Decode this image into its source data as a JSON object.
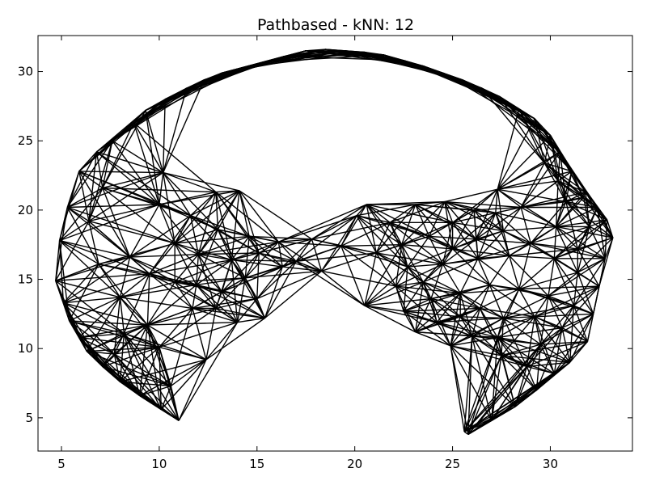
{
  "chart_data": {
    "type": "network",
    "title": "Pathbased - kNN: 12",
    "xlabel": "",
    "ylabel": "",
    "xlim": [
      3.8,
      34.2
    ],
    "ylim": [
      2.6,
      32.6
    ],
    "xticks": [
      "5",
      "10",
      "15",
      "20",
      "25",
      "30"
    ],
    "yticks": [
      "5",
      "10",
      "15",
      "20",
      "25",
      "30"
    ],
    "grid": false,
    "edge_color": "#000000",
    "nodes": [
      {
        "x": 4.7,
        "y": 14.9
      },
      {
        "x": 4.9,
        "y": 17.8
      },
      {
        "x": 5.3,
        "y": 20.2
      },
      {
        "x": 5.9,
        "y": 22.8
      },
      {
        "x": 6.8,
        "y": 24.2
      },
      {
        "x": 7.6,
        "y": 25.0
      },
      {
        "x": 8.7,
        "y": 26.3
      },
      {
        "x": 9.3,
        "y": 27.2
      },
      {
        "x": 10.3,
        "y": 28.0
      },
      {
        "x": 11.4,
        "y": 28.8
      },
      {
        "x": 12.3,
        "y": 29.4
      },
      {
        "x": 13.2,
        "y": 29.9
      },
      {
        "x": 14.3,
        "y": 30.3
      },
      {
        "x": 15.4,
        "y": 30.7
      },
      {
        "x": 16.4,
        "y": 31.1
      },
      {
        "x": 17.5,
        "y": 31.5
      },
      {
        "x": 18.5,
        "y": 31.6
      },
      {
        "x": 19.5,
        "y": 31.5
      },
      {
        "x": 20.5,
        "y": 31.4
      },
      {
        "x": 21.5,
        "y": 31.2
      },
      {
        "x": 22.5,
        "y": 30.8
      },
      {
        "x": 23.5,
        "y": 30.4
      },
      {
        "x": 24.5,
        "y": 29.9
      },
      {
        "x": 25.5,
        "y": 29.4
      },
      {
        "x": 26.5,
        "y": 28.8
      },
      {
        "x": 27.4,
        "y": 28.2
      },
      {
        "x": 28.4,
        "y": 27.3
      },
      {
        "x": 29.2,
        "y": 26.6
      },
      {
        "x": 30.0,
        "y": 25.4
      },
      {
        "x": 30.5,
        "y": 24.2
      },
      {
        "x": 31.1,
        "y": 22.8
      },
      {
        "x": 31.8,
        "y": 21.3
      },
      {
        "x": 32.4,
        "y": 20.2
      },
      {
        "x": 32.9,
        "y": 19.3
      },
      {
        "x": 33.2,
        "y": 18.0
      },
      {
        "x": 32.8,
        "y": 16.5
      },
      {
        "x": 32.5,
        "y": 14.5
      },
      {
        "x": 32.2,
        "y": 12.5
      },
      {
        "x": 31.9,
        "y": 10.5
      },
      {
        "x": 31.0,
        "y": 9.0
      },
      {
        "x": 30.2,
        "y": 8.2
      },
      {
        "x": 29.3,
        "y": 7.0
      },
      {
        "x": 28.2,
        "y": 5.8
      },
      {
        "x": 27.0,
        "y": 4.8
      },
      {
        "x": 25.8,
        "y": 3.8
      },
      {
        "x": 25.6,
        "y": 4.0
      },
      {
        "x": 11.0,
        "y": 4.8
      },
      {
        "x": 10.1,
        "y": 5.6
      },
      {
        "x": 9.0,
        "y": 6.6
      },
      {
        "x": 8.0,
        "y": 7.6
      },
      {
        "x": 7.1,
        "y": 8.7
      },
      {
        "x": 6.3,
        "y": 9.8
      },
      {
        "x": 5.9,
        "y": 10.8
      },
      {
        "x": 5.4,
        "y": 12.0
      },
      {
        "x": 5.1,
        "y": 13.3
      },
      {
        "x": 10.2,
        "y": 22.7
      },
      {
        "x": 12.9,
        "y": 21.3
      },
      {
        "x": 14.1,
        "y": 21.4
      },
      {
        "x": 10.0,
        "y": 20.4
      },
      {
        "x": 11.6,
        "y": 19.6
      },
      {
        "x": 13.0,
        "y": 18.6
      },
      {
        "x": 14.6,
        "y": 18.1
      },
      {
        "x": 10.8,
        "y": 17.6
      },
      {
        "x": 12.0,
        "y": 16.8
      },
      {
        "x": 13.7,
        "y": 16.4
      },
      {
        "x": 15.1,
        "y": 16.9
      },
      {
        "x": 16.1,
        "y": 17.7
      },
      {
        "x": 16.3,
        "y": 15.9
      },
      {
        "x": 17.0,
        "y": 16.3
      },
      {
        "x": 17.8,
        "y": 17.9
      },
      {
        "x": 18.3,
        "y": 15.6
      },
      {
        "x": 8.5,
        "y": 16.6
      },
      {
        "x": 9.5,
        "y": 15.4
      },
      {
        "x": 10.8,
        "y": 14.8
      },
      {
        "x": 11.9,
        "y": 14.6
      },
      {
        "x": 13.2,
        "y": 14.1
      },
      {
        "x": 14.4,
        "y": 15.1
      },
      {
        "x": 15.0,
        "y": 13.6
      },
      {
        "x": 15.4,
        "y": 12.2
      },
      {
        "x": 14.0,
        "y": 11.9
      },
      {
        "x": 12.9,
        "y": 12.9
      },
      {
        "x": 11.7,
        "y": 12.9
      },
      {
        "x": 10.0,
        "y": 10.1
      },
      {
        "x": 12.4,
        "y": 9.2
      },
      {
        "x": 9.4,
        "y": 11.7
      },
      {
        "x": 8.0,
        "y": 13.7
      },
      {
        "x": 6.9,
        "y": 16.1
      },
      {
        "x": 6.4,
        "y": 19.2
      },
      {
        "x": 7.1,
        "y": 21.6
      },
      {
        "x": 8.2,
        "y": 11.1
      },
      {
        "x": 7.7,
        "y": 9.6
      },
      {
        "x": 10.6,
        "y": 7.3
      },
      {
        "x": 19.3,
        "y": 17.4
      },
      {
        "x": 20.1,
        "y": 19.6
      },
      {
        "x": 20.6,
        "y": 20.4
      },
      {
        "x": 21.8,
        "y": 19.1
      },
      {
        "x": 23.1,
        "y": 20.4
      },
      {
        "x": 24.6,
        "y": 20.6
      },
      {
        "x": 25.0,
        "y": 19.1
      },
      {
        "x": 26.1,
        "y": 20.0
      },
      {
        "x": 27.3,
        "y": 21.5
      },
      {
        "x": 28.5,
        "y": 20.2
      },
      {
        "x": 27.6,
        "y": 18.5
      },
      {
        "x": 26.2,
        "y": 17.9
      },
      {
        "x": 25.0,
        "y": 17.2
      },
      {
        "x": 23.8,
        "y": 18.1
      },
      {
        "x": 22.4,
        "y": 17.5
      },
      {
        "x": 21.1,
        "y": 16.9
      },
      {
        "x": 22.7,
        "y": 15.9
      },
      {
        "x": 23.5,
        "y": 14.8
      },
      {
        "x": 24.5,
        "y": 16.1
      },
      {
        "x": 26.3,
        "y": 16.5
      },
      {
        "x": 27.9,
        "y": 16.7
      },
      {
        "x": 29.0,
        "y": 17.6
      },
      {
        "x": 30.3,
        "y": 18.8
      },
      {
        "x": 30.8,
        "y": 20.6
      },
      {
        "x": 30.2,
        "y": 16.5
      },
      {
        "x": 31.4,
        "y": 17.2
      },
      {
        "x": 20.5,
        "y": 13.1
      },
      {
        "x": 22.1,
        "y": 14.5
      },
      {
        "x": 23.9,
        "y": 13.6
      },
      {
        "x": 25.4,
        "y": 14.0
      },
      {
        "x": 26.9,
        "y": 14.6
      },
      {
        "x": 28.4,
        "y": 14.3
      },
      {
        "x": 29.9,
        "y": 13.8
      },
      {
        "x": 31.2,
        "y": 13.1
      },
      {
        "x": 23.1,
        "y": 11.2
      },
      {
        "x": 24.2,
        "y": 11.9
      },
      {
        "x": 25.4,
        "y": 12.3
      },
      {
        "x": 26.4,
        "y": 12.9
      },
      {
        "x": 27.6,
        "y": 12.2
      },
      {
        "x": 26.0,
        "y": 10.9
      },
      {
        "x": 27.5,
        "y": 9.5
      },
      {
        "x": 28.8,
        "y": 8.7
      },
      {
        "x": 29.5,
        "y": 10.3
      },
      {
        "x": 30.6,
        "y": 11.5
      },
      {
        "x": 24.9,
        "y": 10.2
      },
      {
        "x": 27.3,
        "y": 10.8
      },
      {
        "x": 29.2,
        "y": 12.3
      },
      {
        "x": 22.5,
        "y": 12.7
      },
      {
        "x": 31.4,
        "y": 15.5
      },
      {
        "x": 32.0,
        "y": 18.8
      },
      {
        "x": 31.7,
        "y": 20.9
      },
      {
        "x": 27.2,
        "y": 19.8
      },
      {
        "x": 29.7,
        "y": 23.4
      },
      {
        "x": 30.4,
        "y": 22.1
      }
    ],
    "k_neighbors": 12
  }
}
